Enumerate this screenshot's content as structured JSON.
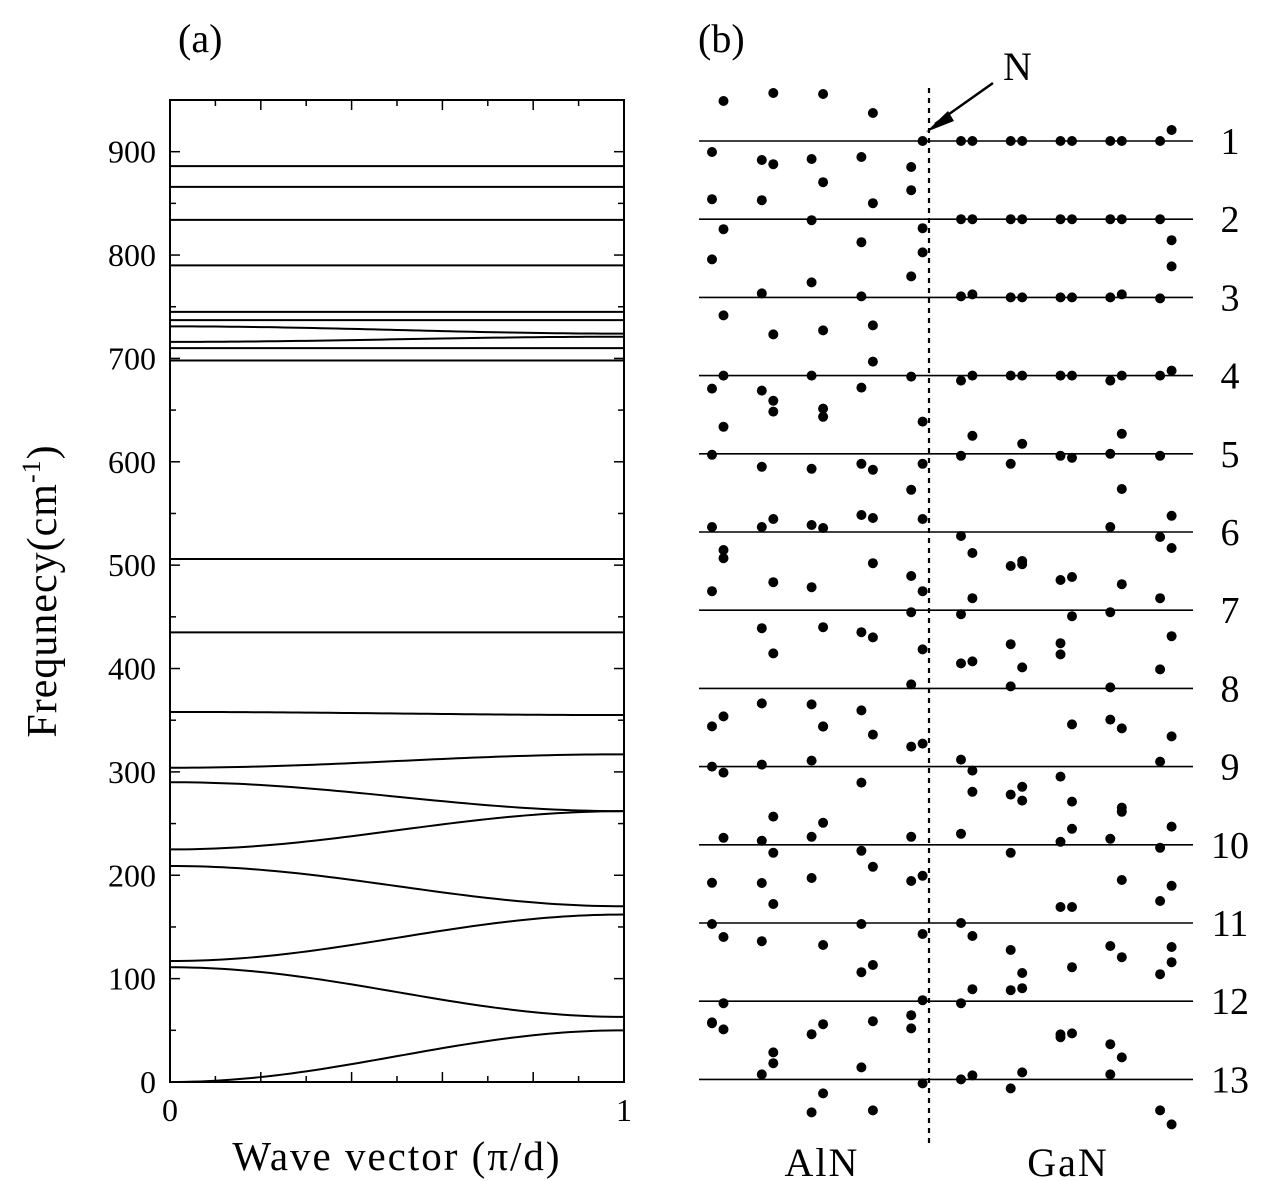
{
  "panel_labels": {
    "a": "(a)",
    "b": "(b)"
  },
  "chart_data": [
    {
      "type": "line",
      "panel": "(a)",
      "xlabel": "Wave vector (π/d)",
      "ylabel": "Frequnecy(cm",
      "ylabel_sup": "-1",
      "ylabel_close": ")",
      "xlim": [
        0,
        1
      ],
      "ylim": [
        0,
        950
      ],
      "xticks": [
        0,
        1
      ],
      "xtick_labels": [
        "0",
        "1"
      ],
      "yticks": [
        0,
        100,
        200,
        300,
        400,
        500,
        600,
        700,
        800,
        900
      ],
      "ytick_labels": [
        "0",
        "100",
        "200",
        "300",
        "400",
        "500",
        "600",
        "700",
        "800",
        "900"
      ],
      "series": [
        {
          "kind": "flat",
          "y": [
            886,
            886
          ]
        },
        {
          "kind": "flat",
          "y": [
            866,
            866
          ]
        },
        {
          "kind": "flat",
          "y": [
            834,
            834
          ]
        },
        {
          "kind": "flat",
          "y": [
            790,
            790
          ]
        },
        {
          "kind": "flat",
          "y": [
            745,
            745
          ]
        },
        {
          "kind": "curve",
          "y": [
            737,
            737
          ]
        },
        {
          "kind": "curve",
          "y": [
            731,
            724
          ]
        },
        {
          "kind": "curve",
          "y": [
            716,
            721
          ]
        },
        {
          "kind": "curve",
          "y": [
            710,
            710
          ]
        },
        {
          "kind": "flat",
          "y": [
            698,
            698
          ]
        },
        {
          "kind": "flat",
          "y": [
            506,
            506
          ]
        },
        {
          "kind": "flat",
          "y": [
            435,
            435
          ]
        },
        {
          "kind": "curve",
          "y": [
            358,
            355
          ]
        },
        {
          "kind": "curve",
          "y": [
            304,
            317
          ]
        },
        {
          "kind": "curve",
          "y": [
            290,
            262
          ]
        },
        {
          "kind": "curve",
          "y": [
            225,
            262
          ]
        },
        {
          "kind": "curve",
          "y": [
            209,
            170
          ]
        },
        {
          "kind": "curve",
          "y": [
            117,
            162
          ]
        },
        {
          "kind": "curve",
          "y": [
            111,
            63
          ]
        },
        {
          "kind": "curve",
          "y": [
            0,
            50
          ]
        }
      ]
    },
    {
      "type": "scatter",
      "panel": "(b)",
      "region_labels": [
        "AlN",
        "GaN"
      ],
      "interface_label": "N",
      "mode_labels": [
        "1",
        "2",
        "3",
        "4",
        "5",
        "6",
        "7",
        "8",
        "9",
        "10",
        "11",
        "12",
        "13"
      ],
      "atom_positions": [
        1,
        2,
        3,
        4,
        5,
        6,
        7,
        8,
        9,
        10,
        11,
        12,
        13,
        14,
        15,
        16,
        17,
        18,
        19,
        20
      ],
      "interface_between": [
        9,
        10
      ],
      "x": [
        1,
        1.3,
        2.3,
        2.6,
        3.6,
        3.9,
        4.9,
        5.2,
        6.2,
        6.5,
        7.5,
        7.8,
        8.8,
        9.1,
        10.1,
        10.4,
        11.4,
        11.7,
        12.7,
        13
      ],
      "modes": [
        {
          "mode": "1",
          "displacements": [
            -11,
            40,
            -19,
            48,
            -18,
            47,
            -16,
            28,
            -26,
            0,
            0,
            0,
            0,
            0,
            0,
            0,
            0,
            0,
            0,
            11
          ]
        },
        {
          "mode": "2",
          "displacements": [
            20,
            -10,
            19,
            55,
            -1,
            37,
            -23,
            16,
            29,
            -9,
            0,
            0,
            0,
            0,
            0,
            0,
            0,
            0,
            0,
            -21
          ]
        },
        {
          "mode": "3",
          "displacements": [
            38,
            -18,
            4,
            -37,
            15,
            -33,
            1,
            -28,
            21,
            45,
            1,
            3,
            0,
            0,
            0,
            0,
            0,
            3,
            -1,
            31
          ]
        },
        {
          "mode": "4",
          "displacements": [
            -13,
            0,
            -15,
            -36,
            0,
            -33,
            -12,
            14,
            -1,
            -46,
            -5,
            0,
            0,
            0,
            0,
            0,
            -5,
            0,
            0,
            5
          ]
        },
        {
          "mode": "5",
          "displacements": [
            -1,
            27,
            -13,
            53,
            -15,
            37,
            -10,
            -16,
            -36,
            -10,
            -2,
            18,
            -10,
            10,
            -2,
            -4,
            0,
            20,
            -2,
            -62
          ]
        },
        {
          "mode": "6",
          "displacements": [
            5,
            -18,
            5,
            13,
            7,
            4,
            17,
            14,
            -44,
            13,
            -4,
            -21,
            -34,
            -29,
            -48,
            -45,
            5,
            43,
            -5,
            -16
          ]
        },
        {
          "mode": "7",
          "displacements": [
            19,
            52,
            -18,
            28,
            23,
            -17,
            -22,
            47,
            -2,
            19,
            -4,
            12,
            -34,
            46,
            -33,
            -6,
            -2,
            26,
            12,
            -26
          ]
        },
        {
          "mode": "8",
          "displacements": [
            -38,
            -28,
            -15,
            35,
            -16,
            -38,
            -22,
            51,
            4,
            39,
            25,
            27,
            2,
            21,
            34,
            -36,
            1,
            -40,
            19,
            -48
          ]
        },
        {
          "mode": "9",
          "displacements": [
            0,
            -6,
            2,
            -50,
            6,
            40,
            -16,
            32,
            20,
            23,
            7,
            -4,
            -28,
            -34,
            -10,
            -35,
            47,
            -41,
            5,
            -60
          ]
        },
        {
          "mode": "10",
          "displacements": [
            -38,
            7,
            4,
            -8,
            8,
            22,
            -6,
            -22,
            8,
            -31,
            11,
            53,
            -8,
            58,
            3,
            16,
            6,
            33,
            -3,
            -41
          ]
        },
        {
          "mode": "11",
          "displacements": [
            -1,
            -14,
            40,
            19,
            45,
            -22,
            -1,
            -42,
            42,
            -11,
            0,
            -13,
            -27,
            -50,
            16,
            16,
            -23,
            43,
            22,
            -24
          ]
        },
        {
          "mode": "12",
          "displacements": [
            -22,
            -2,
            60,
            -62,
            -33,
            -23,
            29,
            -20,
            -14,
            1,
            -2,
            12,
            11,
            13,
            -36,
            34,
            -43,
            44,
            27,
            39
          ]
        },
        {
          "mode": "13",
          "displacements": [
            57,
            50,
            5,
            27,
            -33,
            -14,
            12,
            -31,
            51,
            -4,
            0,
            4,
            -9,
            7,
            45,
            46,
            5,
            22,
            -31,
            -45
          ]
        }
      ]
    }
  ]
}
